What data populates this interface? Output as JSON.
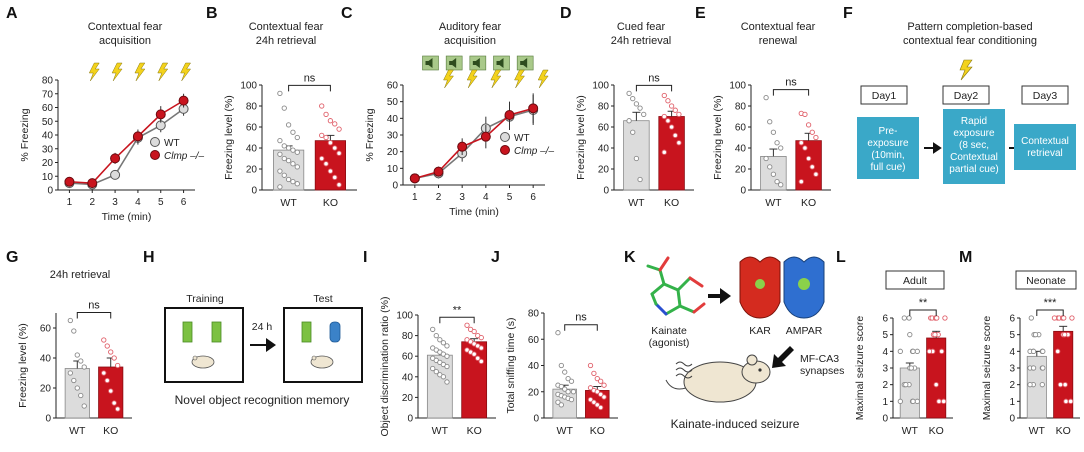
{
  "colors": {
    "wt": "#dcdcdc",
    "ko": "#c8141e",
    "wt_dot": "#8a8a8a",
    "ko_dot": "#e0606a",
    "flow": "#3aa8c8",
    "bolt": "#f3d21c",
    "speaker_bg": "#a9c98a"
  },
  "icons": {
    "shock": "lightning-bolt-icon",
    "tone": "speaker-icon",
    "arrow": "right-arrow-icon"
  },
  "panels": {
    "A": {
      "letter": "A",
      "title1": "Contextual fear",
      "title2": "acquisition",
      "xlabel": "Time (min)",
      "ylabel": "% Freezing",
      "legend_wt": "WT",
      "legend_ko": "Clmp –/–"
    },
    "B": {
      "letter": "B",
      "title1": "Contextual fear",
      "title2": "24h retrieval",
      "ylabel": "Freezing level (%)",
      "sig": "ns"
    },
    "C": {
      "letter": "C",
      "title1": "Auditory fear",
      "title2": "acquisition",
      "xlabel": "Time (min)",
      "ylabel": "% Freezing",
      "legend_wt": "WT",
      "legend_ko": "Clmp –/–"
    },
    "D": {
      "letter": "D",
      "title1": "Cued fear",
      "title2": "24h retrieval",
      "ylabel": "Freezing level (%)",
      "sig": "ns"
    },
    "E": {
      "letter": "E",
      "title1": "Contextual fear",
      "title2": "renewal",
      "ylabel": "Freezing level (%)",
      "sig": "ns"
    },
    "F": {
      "letter": "F",
      "title1": "Pattern completion-based",
      "title2": "contextual fear conditioning",
      "day1": "Day1",
      "day2": "Day2",
      "day3": "Day3",
      "box1": [
        "Pre-",
        "exposure",
        "(10min,",
        "full cue)"
      ],
      "box2": [
        "Rapid",
        "exposure",
        "(8 sec,",
        "Contextual",
        "partial cue)"
      ],
      "box3": [
        "Contextual",
        "retrieval"
      ]
    },
    "G": {
      "letter": "G",
      "title": "24h retrieval",
      "ylabel": "Freezing level (%)",
      "sig": "ns"
    },
    "H": {
      "letter": "H",
      "training": "Training",
      "test": "Test",
      "delay": "24 h",
      "caption": "Novel object recognition memory"
    },
    "I": {
      "letter": "I",
      "ylabel": "Object discrimination ratio (%)",
      "sig": "**"
    },
    "J": {
      "letter": "J",
      "ylabel": "Total sniffing time (s)",
      "sig": "ns"
    },
    "K": {
      "letter": "K",
      "kainate": "Kainate",
      "agonist": "(agonist)",
      "kar": "KAR",
      "ampar": "AMPAR",
      "syn1": "MF-CA3",
      "syn2": "synapses",
      "caption": "Kainate-induced seizure"
    },
    "L": {
      "letter": "L",
      "box": "Adult",
      "ylabel": "Maximal seizure score",
      "sig": "**"
    },
    "M": {
      "letter": "M",
      "box": "Neonate",
      "ylabel": "Maximal seizure score",
      "sig": "***"
    }
  },
  "chart_data": [
    {
      "panel": "A",
      "type": "line",
      "title": "Contextual fear acquisition",
      "xlabel": "Time (min)",
      "ylabel": "% Freezing",
      "x": [
        1,
        2,
        3,
        4,
        5,
        6
      ],
      "xlim": [
        0.5,
        6.5
      ],
      "ylim": [
        0,
        80
      ],
      "yticks": [
        0,
        10,
        20,
        30,
        40,
        50,
        60,
        70,
        80
      ],
      "shock_times": [
        2,
        3,
        4,
        5,
        6
      ],
      "series": [
        {
          "name": "WT",
          "values": [
            5,
            4,
            11,
            38,
            47,
            59
          ],
          "err": [
            2,
            2,
            3,
            5,
            5,
            5
          ]
        },
        {
          "name": "Clmp –/–",
          "values": [
            6,
            5,
            23,
            39,
            55,
            65
          ],
          "err": [
            2,
            2,
            4,
            5,
            6,
            5
          ]
        }
      ]
    },
    {
      "panel": "C",
      "type": "line",
      "title": "Auditory fear acquisition",
      "xlabel": "Time (min)",
      "ylabel": "% Freezing",
      "x": [
        1,
        2,
        3,
        4,
        5,
        6
      ],
      "xlim": [
        0.5,
        6.5
      ],
      "ylim": [
        0,
        60
      ],
      "yticks": [
        0,
        10,
        20,
        30,
        40,
        50,
        60
      ],
      "shock_times": [
        2,
        3,
        4,
        5,
        6
      ],
      "tone_times": [
        2,
        3,
        4,
        5,
        6
      ],
      "series": [
        {
          "name": "WT",
          "values": [
            4,
            7,
            19,
            34,
            41,
            45
          ],
          "err": [
            2,
            3,
            5,
            7,
            8,
            9
          ]
        },
        {
          "name": "Clmp –/–",
          "values": [
            4,
            8,
            23,
            29,
            42,
            46
          ],
          "err": [
            2,
            3,
            5,
            7,
            8,
            9
          ]
        }
      ]
    },
    {
      "panel": "B",
      "type": "bar",
      "categories": [
        "WT",
        "KO"
      ],
      "values": [
        38,
        47
      ],
      "err": [
        4,
        5
      ],
      "ylim": [
        0,
        100
      ],
      "yticks": [
        0,
        20,
        40,
        60,
        80,
        100
      ],
      "points": [
        [
          92,
          78,
          62,
          55,
          50,
          47,
          42,
          40,
          38,
          36,
          34,
          30,
          28,
          25,
          22,
          18,
          14,
          10,
          8,
          6,
          3
        ],
        [
          80,
          72,
          66,
          63,
          58,
          52,
          50,
          45,
          40,
          35,
          30,
          25,
          18,
          12,
          5
        ]
      ]
    },
    {
      "panel": "D",
      "type": "bar",
      "categories": [
        "WT",
        "KO"
      ],
      "values": [
        66,
        70
      ],
      "err": [
        8,
        5
      ],
      "ylim": [
        0,
        100
      ],
      "yticks": [
        0,
        20,
        40,
        60,
        80,
        100
      ],
      "points": [
        [
          92,
          87,
          82,
          78,
          72,
          66,
          55,
          30,
          10
        ],
        [
          90,
          85,
          80,
          76,
          72,
          70,
          66,
          60,
          52,
          45,
          36
        ]
      ]
    },
    {
      "panel": "E",
      "type": "bar",
      "categories": [
        "WT",
        "KO"
      ],
      "values": [
        32,
        47
      ],
      "err": [
        7,
        7
      ],
      "ylim": [
        0,
        100
      ],
      "yticks": [
        0,
        20,
        40,
        60,
        80,
        100
      ],
      "points": [
        [
          88,
          65,
          55,
          45,
          40,
          30,
          22,
          15,
          8,
          5
        ],
        [
          73,
          72,
          62,
          55,
          50,
          45,
          40,
          30,
          22,
          15,
          8
        ]
      ]
    },
    {
      "panel": "G",
      "type": "bar",
      "categories": [
        "WT",
        "KO"
      ],
      "values": [
        33,
        34
      ],
      "err": [
        5,
        6
      ],
      "ylim": [
        0,
        70
      ],
      "yticks": [
        0,
        20,
        40,
        60
      ],
      "points": [
        [
          65,
          58,
          42,
          38,
          34,
          30,
          25,
          20,
          15,
          8
        ],
        [
          52,
          48,
          44,
          40,
          35,
          30,
          25,
          18,
          10,
          6
        ]
      ]
    },
    {
      "panel": "I",
      "type": "bar",
      "categories": [
        "WT",
        "KO"
      ],
      "values": [
        61,
        74
      ],
      "err": [
        3,
        3
      ],
      "ylim": [
        0,
        100
      ],
      "yticks": [
        0,
        20,
        40,
        60,
        80,
        100
      ],
      "points": [
        [
          86,
          80,
          76,
          73,
          70,
          68,
          66,
          64,
          62,
          60,
          58,
          56,
          54,
          52,
          50,
          48,
          45,
          42,
          40,
          35
        ],
        [
          90,
          86,
          84,
          80,
          78,
          76,
          74,
          72,
          70,
          68,
          66,
          64,
          62,
          58,
          55
        ]
      ]
    },
    {
      "panel": "J",
      "type": "bar",
      "categories": [
        "WT",
        "KO"
      ],
      "values": [
        22,
        21
      ],
      "err": [
        3,
        3
      ],
      "ylim": [
        0,
        80
      ],
      "yticks": [
        0,
        20,
        40,
        60,
        80
      ],
      "points": [
        [
          65,
          40,
          35,
          30,
          28,
          25,
          24,
          22,
          20,
          20,
          18,
          17,
          16,
          15,
          14,
          12,
          10
        ],
        [
          40,
          34,
          30,
          28,
          25,
          23,
          21,
          20,
          18,
          16,
          14,
          12,
          10,
          8
        ]
      ]
    },
    {
      "panel": "L",
      "type": "bar",
      "categories": [
        "WT",
        "KO"
      ],
      "values": [
        3.0,
        4.8
      ],
      "err": [
        0.3,
        0.4
      ],
      "ylim": [
        0,
        6
      ],
      "yticks": [
        0,
        1,
        2,
        3,
        4,
        5,
        6
      ],
      "points": [
        [
          6,
          6,
          5,
          4,
          4,
          4,
          4,
          3,
          3,
          3,
          2,
          2,
          2,
          1,
          1,
          1,
          1
        ],
        [
          6,
          6,
          6,
          6,
          6,
          6,
          5,
          5,
          5,
          4,
          4,
          4,
          2,
          1,
          1
        ]
      ]
    },
    {
      "panel": "M",
      "type": "bar",
      "categories": [
        "WT",
        "KO"
      ],
      "values": [
        3.7,
        5.2
      ],
      "err": [
        0.3,
        0.3
      ],
      "ylim": [
        0,
        6
      ],
      "yticks": [
        0,
        1,
        2,
        3,
        4,
        5,
        6
      ],
      "points": [
        [
          6,
          5,
          5,
          5,
          4,
          4,
          4,
          4,
          4,
          3,
          3,
          3,
          3,
          3,
          2,
          2,
          2
        ],
        [
          6,
          6,
          6,
          6,
          6,
          6,
          6,
          5,
          5,
          5,
          4,
          2,
          2,
          1,
          1
        ]
      ]
    }
  ]
}
